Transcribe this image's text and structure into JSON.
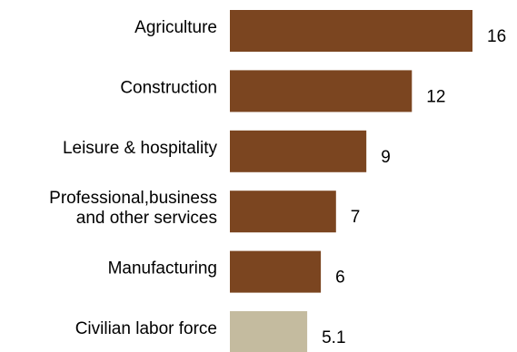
{
  "chart_data": {
    "type": "bar",
    "orientation": "horizontal",
    "title": "",
    "xlabel": "",
    "ylabel": "",
    "categories": [
      [
        "Agriculture"
      ],
      [
        "Construction"
      ],
      [
        "Leisure & hospitality"
      ],
      [
        "Professional,business",
        "and other services"
      ],
      [
        "Manufacturing"
      ],
      [
        "Civilian labor  force"
      ]
    ],
    "values": [
      16,
      12,
      9,
      7,
      6,
      5.1
    ],
    "value_labels": [
      "16",
      "12",
      "9",
      "7",
      "6",
      "5.1"
    ],
    "colors": [
      "#7b4520",
      "#7b4520",
      "#7b4520",
      "#7b4520",
      "#7b4520",
      "#c4bb9f"
    ],
    "xlim": [
      0,
      16
    ],
    "grid": false,
    "legend": "none"
  }
}
